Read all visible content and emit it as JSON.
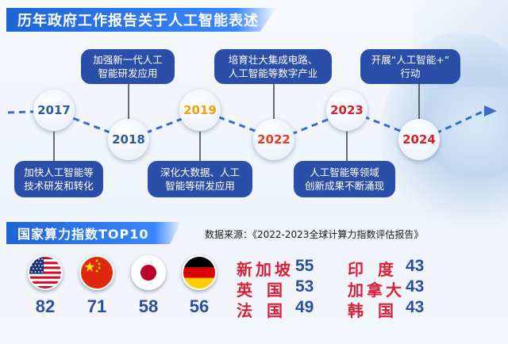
{
  "title": "历年政府工作报告关于人工智能表述",
  "timeline": {
    "years": [
      "2017",
      "2018",
      "2019",
      "2022",
      "2023",
      "2024"
    ],
    "year_colors": [
      "#2c5aa0",
      "#2c5aa0",
      "#f2a200",
      "#e33b2a",
      "#d81f28",
      "#d81f28"
    ],
    "statements": [
      "加快人工智能等\n技术研发和转化",
      "加强新一代人工\n智能研发应用",
      "深化大数据、人工\n智能等研发应用",
      "培育壮大集成电路、\n人工智能等数字产业",
      "人工智能等领域\n创新成果不断涌现",
      "开展“人工智能+”\n行动"
    ]
  },
  "ranking": {
    "title": "国家算力指数TOP10",
    "source": "数据来源：《2022-2023全球计算力指数评估报告》",
    "flag_countries": [
      {
        "flag_icon": "usa-flag-icon",
        "score": "82"
      },
      {
        "flag_icon": "china-flag-icon",
        "score": "71"
      },
      {
        "flag_icon": "japan-flag-icon",
        "score": "58"
      },
      {
        "flag_icon": "germany-flag-icon",
        "score": "56"
      }
    ],
    "list_col1": [
      {
        "name": "新加坡",
        "score": "55"
      },
      {
        "name": "英国",
        "score": "53"
      },
      {
        "name": "法国",
        "score": "49"
      }
    ],
    "list_col2": [
      {
        "name": "印度",
        "score": "43"
      },
      {
        "name": "加拿大",
        "score": "43"
      },
      {
        "name": "韩国",
        "score": "43"
      }
    ]
  }
}
